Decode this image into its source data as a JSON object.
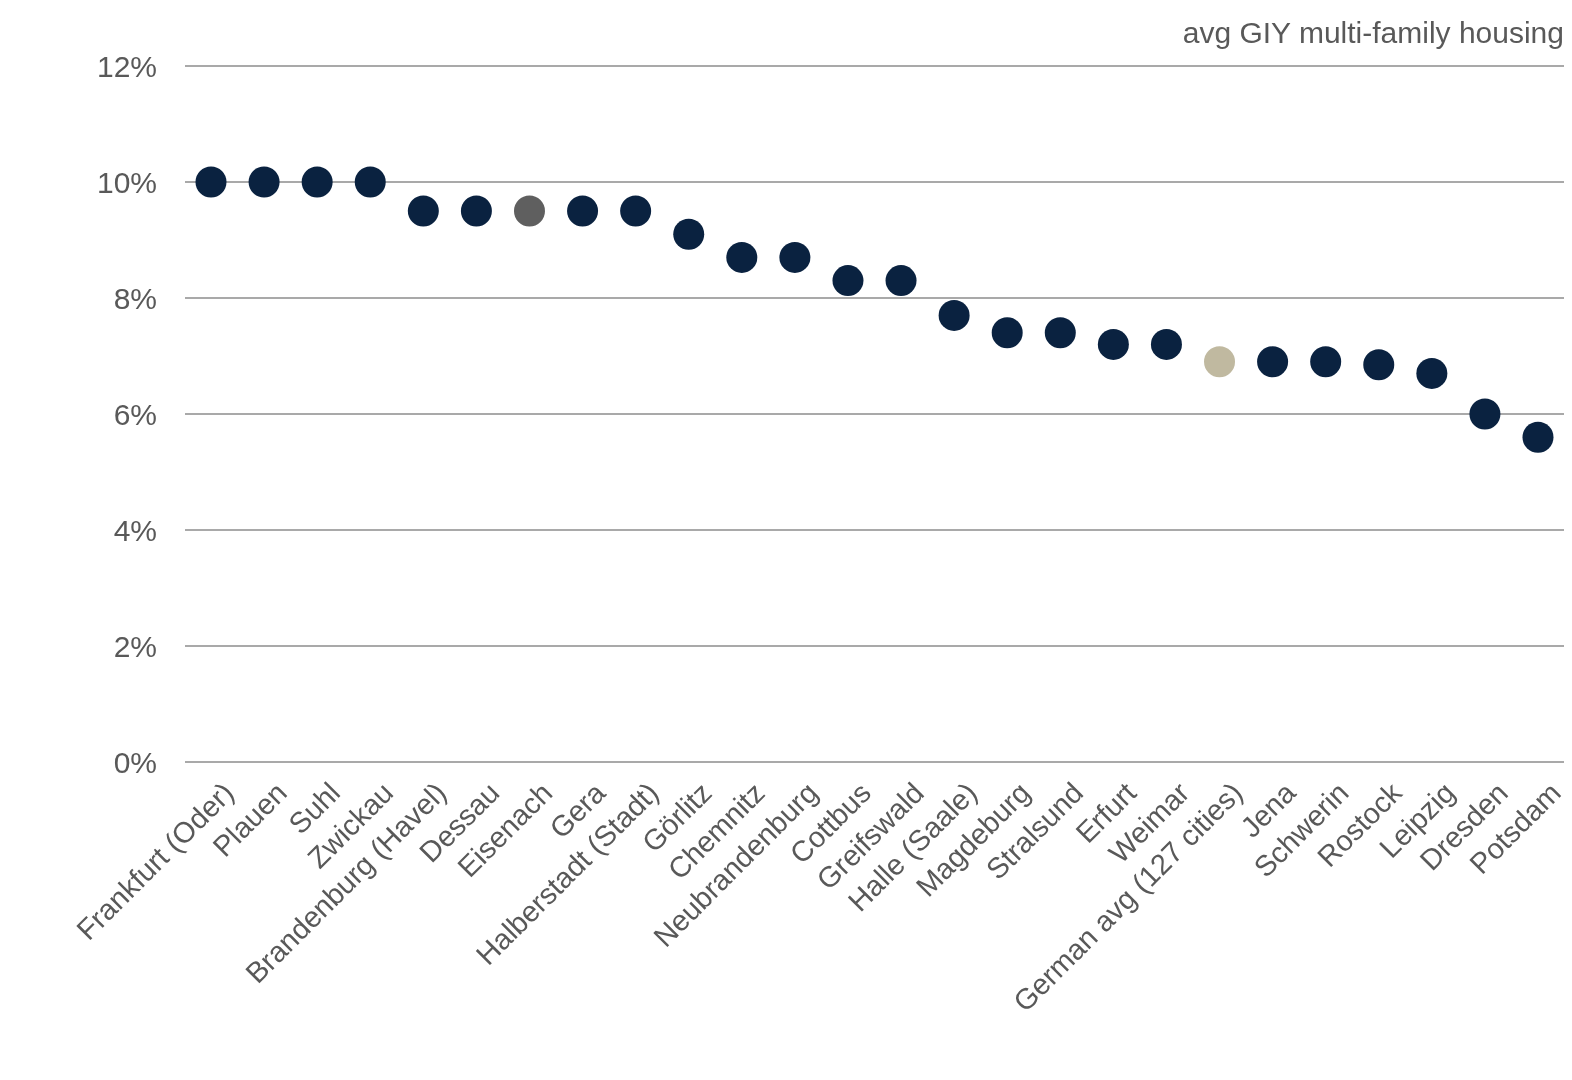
{
  "chart_data": {
    "type": "scatter",
    "title": "avg GIY multi-family housing",
    "categories": [
      "Frankfurt (Oder)",
      "Plauen",
      "Suhl",
      "Zwickau",
      "Brandenburg (Havel)",
      "Dessau",
      "Eisenach",
      "Gera",
      "Halberstadt (Stadt)",
      "Görlitz",
      "Chemnitz",
      "Neubrandenburg",
      "Cottbus",
      "Greifswald",
      "Halle (Saale)",
      "Magdeburg",
      "Stralsund",
      "Erfurt",
      "Weimar",
      "German avg (127 cities)",
      "Jena",
      "Schwerin",
      "Rostock",
      "Leipzig",
      "Dresden",
      "Potsdam"
    ],
    "values": [
      10,
      10,
      10,
      10,
      9.5,
      9.5,
      9.5,
      9.5,
      9.5,
      9.1,
      8.7,
      8.7,
      8.3,
      8.3,
      7.7,
      7.4,
      7.4,
      7.2,
      7.2,
      6.9,
      6.9,
      6.9,
      6.85,
      6.7,
      6.0,
      5.6
    ],
    "colors": [
      "#0a2240",
      "#0a2240",
      "#0a2240",
      "#0a2240",
      "#0a2240",
      "#0a2240",
      "#5f5f5f",
      "#0a2240",
      "#0a2240",
      "#0a2240",
      "#0a2240",
      "#0a2240",
      "#0a2240",
      "#0a2240",
      "#0a2240",
      "#0a2240",
      "#0a2240",
      "#0a2240",
      "#0a2240",
      "#c0b9a0",
      "#0a2240",
      "#0a2240",
      "#0a2240",
      "#0a2240",
      "#0a2240",
      "#0a2240"
    ],
    "ylim": [
      0,
      12
    ],
    "yticks": [
      {
        "value": 0,
        "label": "0%"
      },
      {
        "value": 2,
        "label": "2%"
      },
      {
        "value": 4,
        "label": "4%"
      },
      {
        "value": 6,
        "label": "6%"
      },
      {
        "value": 8,
        "label": "8%"
      },
      {
        "value": 10,
        "label": "10%"
      },
      {
        "value": 12,
        "label": "12%"
      }
    ],
    "grid": "y",
    "marker": "circle"
  }
}
